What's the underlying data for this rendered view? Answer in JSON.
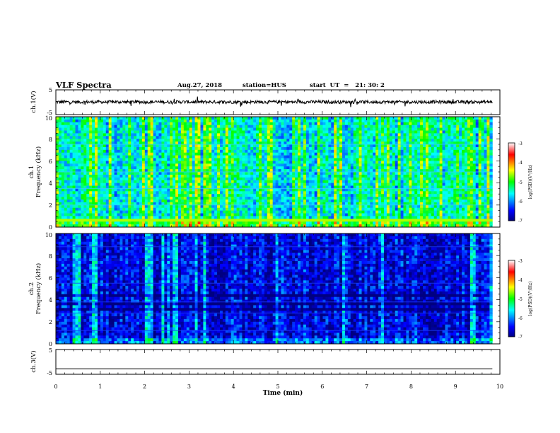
{
  "header": {
    "title": "VLF Spectra",
    "date": "Aug.27, 2018",
    "station": "station=HUS",
    "start": "start  UT  =   21: 30: 2"
  },
  "panels": {
    "ch1_wave": {
      "ylabel": "ch.1(V)",
      "yticks": [
        "5",
        "-5"
      ]
    },
    "ch1_spec": {
      "ylabel_top": "ch.1",
      "ylabel": "Frequency (kHz)",
      "yticks": [
        "0",
        "2",
        "4",
        "6",
        "8",
        "10"
      ]
    },
    "ch2_spec": {
      "ylabel_top": "ch.2",
      "ylabel": "Frequency (kHz)",
      "yticks": [
        "0",
        "2",
        "4",
        "6",
        "8",
        "10"
      ]
    },
    "ch3_wave": {
      "ylabel": "ch.3(V)",
      "yticks": [
        "5",
        "-5"
      ]
    }
  },
  "xaxis": {
    "label": "Time (min)",
    "ticks": [
      "0",
      "1",
      "2",
      "3",
      "4",
      "5",
      "6",
      "7",
      "8",
      "9",
      "10"
    ]
  },
  "colorbar": {
    "label": "log(PSD)(V²/Hz)",
    "ticks": [
      "-3",
      "-4",
      "-5",
      "-6",
      "-7"
    ]
  },
  "chart_data": {
    "type": "heatmap",
    "title": "VLF Spectra",
    "xlabel": "Time (min)",
    "xlim": [
      0,
      10
    ],
    "data_extent_min": 9.83,
    "ylim_frequency_khz": [
      0,
      10
    ],
    "color_scale": {
      "min": -7,
      "max": -3,
      "colors": [
        "#000080",
        "#0000ff",
        "#00ffff",
        "#00ff00",
        "#ffff00",
        "#ff0000",
        "#ffffff"
      ]
    },
    "series": [
      {
        "name": "ch.1",
        "kind": "waveform",
        "ylim": [
          -5,
          5
        ],
        "level": 0.1
      },
      {
        "name": "ch.1",
        "kind": "spectrogram",
        "background_log_psd": -5.6,
        "burst_log_psd": -5.0
      },
      {
        "name": "ch.2",
        "kind": "spectrogram",
        "background_log_psd": -6.6,
        "burst_log_psd": -6.0
      },
      {
        "name": "ch.3",
        "kind": "waveform",
        "ylim": [
          -5,
          5
        ],
        "level": -2.8
      }
    ]
  }
}
